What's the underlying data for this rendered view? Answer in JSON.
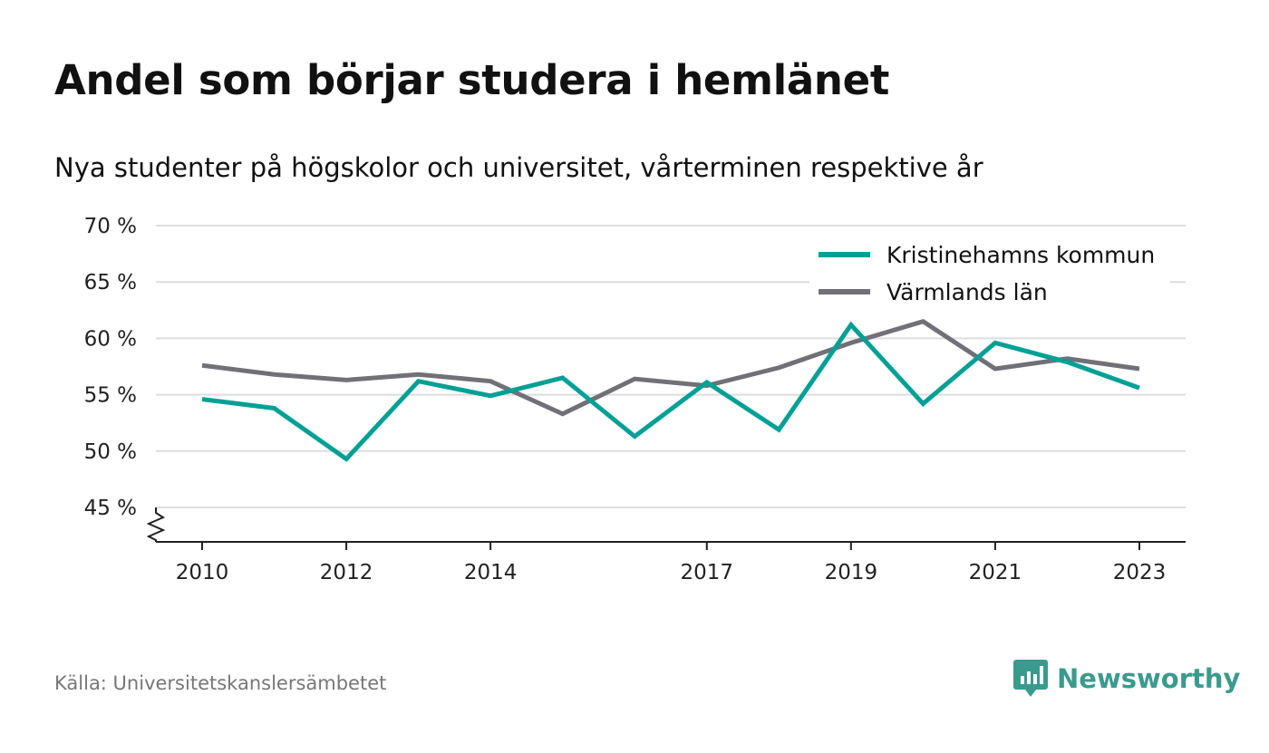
{
  "title": "Andel som börjar studera i hemlänet",
  "subtitle": "Nya studenter på högskolor och universitet, vårterminen respektive år",
  "source": "Källa: Universitetskanslersämbetet",
  "brand": {
    "name": "Newsworthy",
    "logo_icon": "newsworthy-logo-icon"
  },
  "colors": {
    "series1": "#00a096",
    "series2": "#727077",
    "grid": "#dddddd",
    "brand": "#3b9a8e"
  },
  "chart_data": {
    "type": "line",
    "x": [
      2010,
      2011,
      2012,
      2013,
      2014,
      2015,
      2016,
      2017,
      2018,
      2019,
      2020,
      2021,
      2022,
      2023
    ],
    "x_tick_values": [
      2010,
      2012,
      2014,
      2017,
      2019,
      2021,
      2023
    ],
    "x_tick_labels": [
      "2010",
      "2012",
      "2014",
      "2017",
      "2019",
      "2021",
      "2023"
    ],
    "y_tick_values": [
      45,
      50,
      55,
      60,
      65,
      70
    ],
    "y_tick_labels": [
      "45 %",
      "50 %",
      "55 %",
      "60 %",
      "65 %",
      "70 %"
    ],
    "ylim": [
      45,
      70
    ],
    "xlim": [
      2010,
      2023
    ],
    "grid": true,
    "legend_position": "top-right",
    "axis_break": true,
    "series": [
      {
        "name": "Kristinehamns kommun",
        "color": "#00a096",
        "values": [
          54.6,
          53.8,
          49.3,
          56.2,
          54.9,
          56.5,
          51.3,
          56.1,
          51.9,
          61.2,
          54.2,
          59.6,
          57.9,
          55.6
        ]
      },
      {
        "name": "Värmlands län",
        "color": "#727077",
        "values": [
          57.6,
          56.8,
          56.3,
          56.8,
          56.2,
          53.3,
          56.4,
          55.8,
          57.4,
          59.6,
          61.5,
          57.3,
          58.2,
          57.3
        ]
      }
    ]
  }
}
